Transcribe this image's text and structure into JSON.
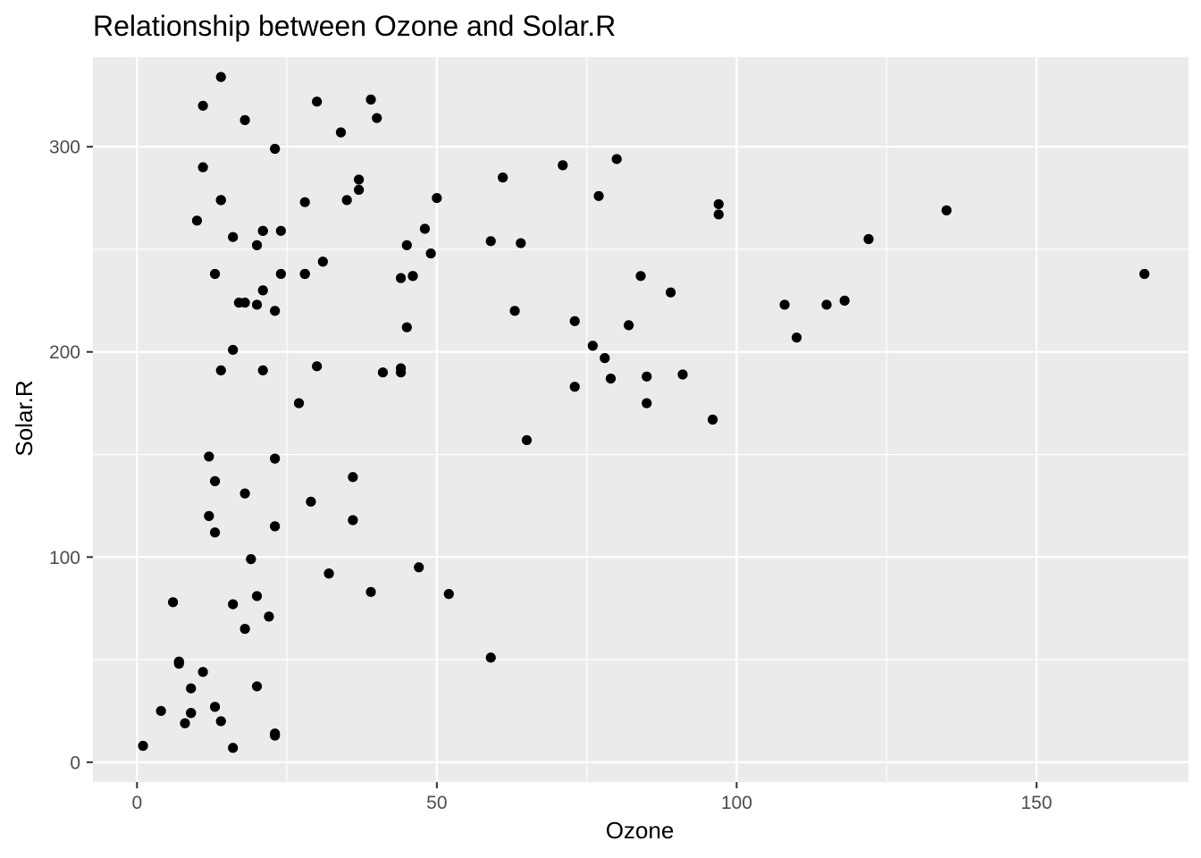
{
  "chart_data": {
    "type": "scatter",
    "title": "Relationship between Ozone and Solar.R",
    "xlabel": "Ozone",
    "ylabel": "Solar.R",
    "xlim": [
      -7.35,
      175.35
    ],
    "ylim": [
      -9.65,
      343.65
    ],
    "x_ticks": [
      0,
      50,
      100,
      150
    ],
    "y_ticks": [
      0,
      100,
      200,
      300
    ],
    "x_tick_labels": [
      "0",
      "50",
      "100",
      "150"
    ],
    "y_tick_labels": [
      "0",
      "100",
      "200",
      "300"
    ],
    "x_minor": [
      25,
      75,
      125
    ],
    "y_minor": [
      50,
      150,
      250
    ],
    "grid": true,
    "legend": "none",
    "colors": {
      "panel_background": "#ebebeb",
      "grid_line": "#ffffff",
      "point": "#000000"
    },
    "points": [
      [
        41,
        190
      ],
      [
        36,
        118
      ],
      [
        12,
        149
      ],
      [
        18,
        313
      ],
      [
        28,
        238
      ],
      [
        23,
        299
      ],
      [
        19,
        99
      ],
      [
        8,
        19
      ],
      [
        7,
        48
      ],
      [
        16,
        256
      ],
      [
        11,
        290
      ],
      [
        14,
        274
      ],
      [
        18,
        65
      ],
      [
        14,
        334
      ],
      [
        34,
        307
      ],
      [
        6,
        78
      ],
      [
        30,
        322
      ],
      [
        11,
        44
      ],
      [
        1,
        8
      ],
      [
        11,
        320
      ],
      [
        4,
        25
      ],
      [
        32,
        92
      ],
      [
        23,
        13
      ],
      [
        45,
        252
      ],
      [
        115,
        223
      ],
      [
        37,
        279
      ],
      [
        97,
        272
      ],
      [
        97,
        267
      ],
      [
        85,
        175
      ],
      [
        10,
        264
      ],
      [
        27,
        175
      ],
      [
        7,
        49
      ],
      [
        48,
        260
      ],
      [
        35,
        274
      ],
      [
        61,
        285
      ],
      [
        79,
        187
      ],
      [
        63,
        220
      ],
      [
        16,
        7
      ],
      [
        80,
        294
      ],
      [
        108,
        223
      ],
      [
        20,
        81
      ],
      [
        52,
        82
      ],
      [
        82,
        213
      ],
      [
        50,
        275
      ],
      [
        64,
        253
      ],
      [
        59,
        254
      ],
      [
        39,
        83
      ],
      [
        9,
        24
      ],
      [
        16,
        77
      ],
      [
        122,
        255
      ],
      [
        89,
        229
      ],
      [
        110,
        207
      ],
      [
        44,
        192
      ],
      [
        28,
        273
      ],
      [
        65,
        157
      ],
      [
        22,
        71
      ],
      [
        59,
        51
      ],
      [
        23,
        115
      ],
      [
        31,
        244
      ],
      [
        44,
        190
      ],
      [
        21,
        259
      ],
      [
        9,
        36
      ],
      [
        45,
        212
      ],
      [
        168,
        238
      ],
      [
        73,
        215
      ],
      [
        76,
        203
      ],
      [
        118,
        225
      ],
      [
        84,
        237
      ],
      [
        85,
        188
      ],
      [
        96,
        167
      ],
      [
        78,
        197
      ],
      [
        73,
        183
      ],
      [
        91,
        189
      ],
      [
        47,
        95
      ],
      [
        32,
        92
      ],
      [
        20,
        252
      ],
      [
        23,
        220
      ],
      [
        21,
        230
      ],
      [
        24,
        259
      ],
      [
        44,
        236
      ],
      [
        21,
        259
      ],
      [
        28,
        238
      ],
      [
        9,
        24
      ],
      [
        13,
        112
      ],
      [
        46,
        237
      ],
      [
        18,
        224
      ],
      [
        13,
        27
      ],
      [
        24,
        238
      ],
      [
        16,
        201
      ],
      [
        13,
        238
      ],
      [
        23,
        14
      ],
      [
        36,
        139
      ],
      [
        7,
        49
      ],
      [
        14,
        20
      ],
      [
        30,
        193
      ],
      [
        14,
        191
      ],
      [
        18,
        131
      ],
      [
        20,
        223
      ],
      [
        135,
        269
      ],
      [
        77,
        276
      ],
      [
        71,
        291
      ],
      [
        39,
        323
      ],
      [
        40,
        314
      ],
      [
        37,
        284
      ],
      [
        46,
        237
      ],
      [
        49,
        248
      ],
      [
        29,
        127
      ],
      [
        20,
        37
      ],
      [
        12,
        120
      ],
      [
        13,
        137
      ],
      [
        21,
        191
      ],
      [
        14,
        274
      ],
      [
        23,
        148
      ],
      [
        17,
        224
      ]
    ]
  }
}
